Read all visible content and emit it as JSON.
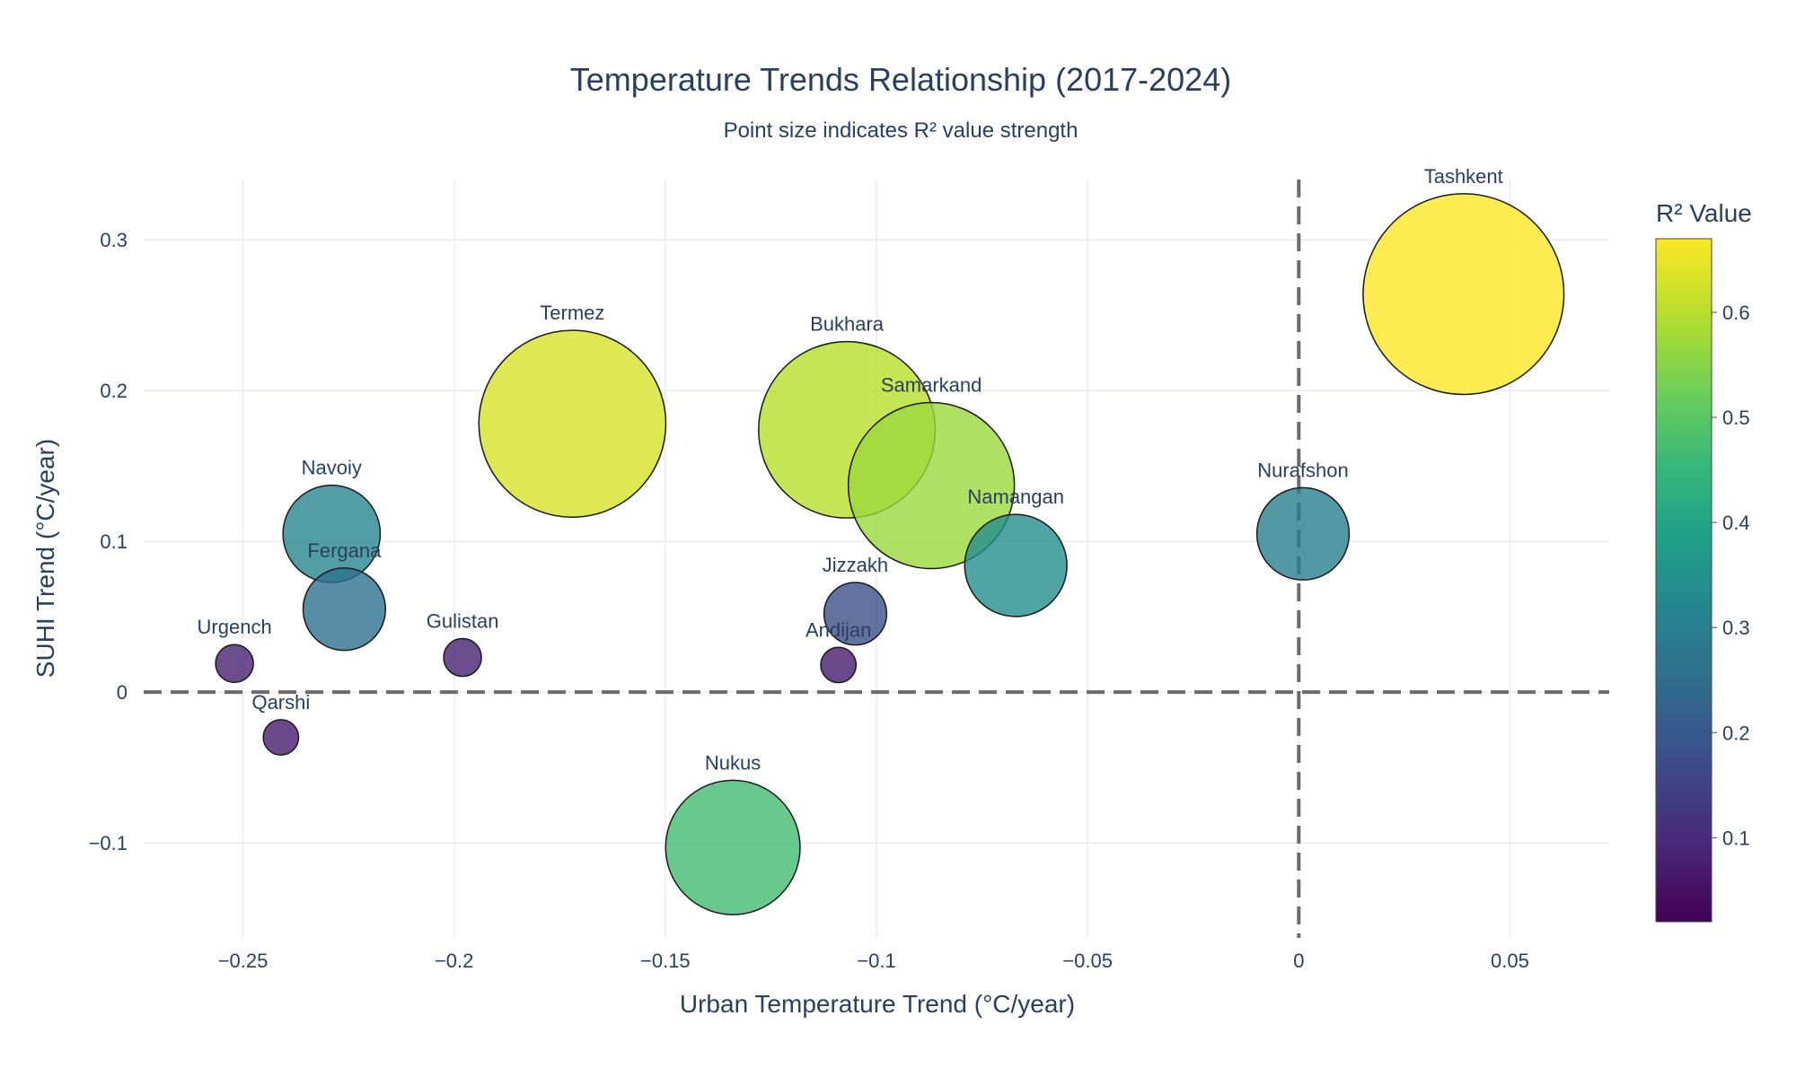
{
  "chart_data": {
    "type": "scatter",
    "title": "Temperature Trends Relationship (2017-2024)",
    "subtitle": "Point size indicates R² value strength",
    "xlabel": "Urban Temperature Trend (°C/year)",
    "ylabel": "SUHI Trend (°C/year)",
    "xlim": [
      -0.2735,
      0.0735
    ],
    "ylim": [
      -0.163,
      0.34
    ],
    "x_ticks": [
      -0.25,
      -0.2,
      -0.15,
      -0.1,
      -0.05,
      0,
      0.05
    ],
    "x_tick_labels": [
      "−0.25",
      "−0.2",
      "−0.15",
      "−0.1",
      "−0.05",
      "0",
      "0.05"
    ],
    "y_ticks": [
      -0.1,
      0,
      0.1,
      0.2,
      0.3
    ],
    "y_tick_labels": [
      "−0.1",
      "0",
      "0.1",
      "0.2",
      "0.3"
    ],
    "grid": true,
    "reference_lines": {
      "x": 0,
      "y": 0,
      "style": "dashed"
    },
    "colorbar": {
      "title": "R² Value",
      "colorscale": "Viridis",
      "range": [
        0.02,
        0.67
      ],
      "ticks": [
        0.1,
        0.2,
        0.3,
        0.4,
        0.5,
        0.6
      ],
      "tick_labels": [
        "0.1",
        "0.2",
        "0.3",
        "0.4",
        "0.5",
        "0.6"
      ]
    },
    "points": [
      {
        "label": "Tashkent",
        "x": 0.039,
        "y": 0.264,
        "r2": 0.67
      },
      {
        "label": "Termez",
        "x": -0.172,
        "y": 0.178,
        "r2": 0.63
      },
      {
        "label": "Bukhara",
        "x": -0.107,
        "y": 0.174,
        "r2": 0.6
      },
      {
        "label": "Samarkand",
        "x": -0.087,
        "y": 0.137,
        "r2": 0.57
      },
      {
        "label": "Nukus",
        "x": -0.134,
        "y": -0.103,
        "r2": 0.47
      },
      {
        "label": "Navoiy",
        "x": -0.229,
        "y": 0.105,
        "r2": 0.32
      },
      {
        "label": "Namangan",
        "x": -0.067,
        "y": 0.084,
        "r2": 0.34
      },
      {
        "label": "Nurafshon",
        "x": 0.001,
        "y": 0.105,
        "r2": 0.3
      },
      {
        "label": "Fergana",
        "x": -0.226,
        "y": 0.055,
        "r2": 0.26
      },
      {
        "label": "Jizzakh",
        "x": -0.105,
        "y": 0.052,
        "r2": 0.18
      },
      {
        "label": "Gulistan",
        "x": -0.198,
        "y": 0.023,
        "r2": 0.08
      },
      {
        "label": "Andijan",
        "x": -0.109,
        "y": 0.018,
        "r2": 0.07
      },
      {
        "label": "Urgench",
        "x": -0.252,
        "y": 0.019,
        "r2": 0.08
      },
      {
        "label": "Qarshi",
        "x": -0.241,
        "y": -0.03,
        "r2": 0.07
      }
    ]
  }
}
